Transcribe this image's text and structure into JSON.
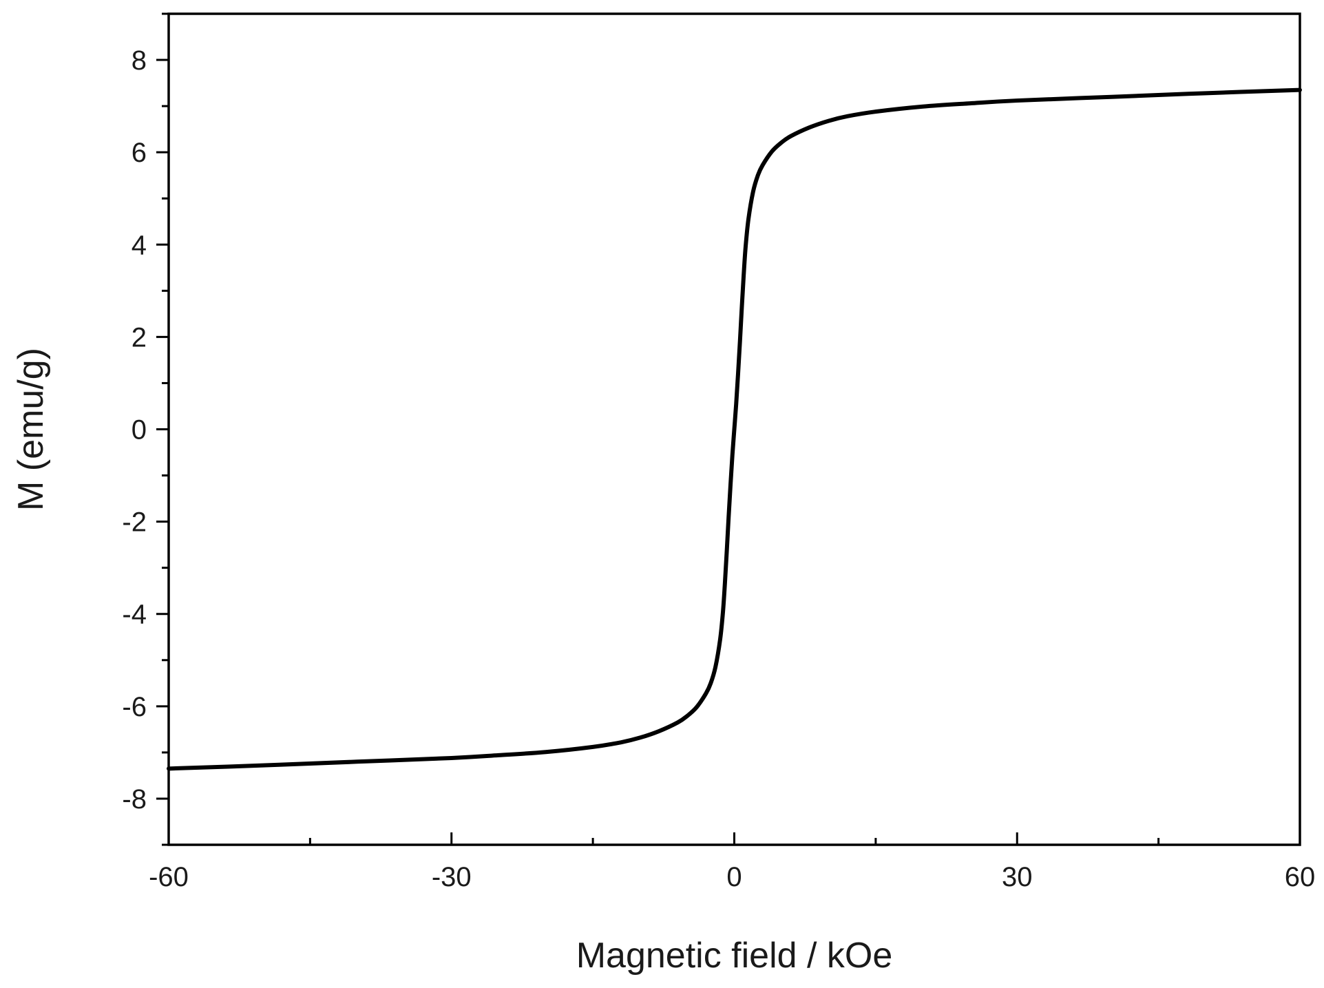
{
  "chart_data": {
    "type": "line",
    "xlabel": "Magnetic field / kOe",
    "ylabel": "M (emu/g)",
    "xlim": [
      -60,
      60
    ],
    "ylim": [
      -9,
      9
    ],
    "x_ticks": [
      -60,
      -30,
      0,
      30,
      60
    ],
    "x_tick_labels": [
      "-60",
      "-30",
      "0",
      "30",
      "60"
    ],
    "y_ticks": [
      -8,
      -6,
      -4,
      -2,
      0,
      2,
      4,
      6,
      8
    ],
    "y_tick_labels": [
      "-8",
      "-6",
      "-4",
      "-2",
      "0",
      "2",
      "4",
      "6",
      "8"
    ],
    "grid": false,
    "legend": "none",
    "line_color": "#000000",
    "series": [
      {
        "x": [
          -60,
          -50,
          -40,
          -30,
          -25,
          -20,
          -15,
          -12,
          -10,
          -8,
          -6,
          -5,
          -4,
          -3,
          -2.5,
          -2,
          -1.5,
          -1.2,
          -1,
          -0.8,
          -0.6,
          -0.4,
          -0.2,
          0,
          0.2,
          0.4,
          0.6,
          0.8,
          1,
          1.2,
          1.5,
          2,
          2.5,
          3,
          4,
          5,
          6,
          8,
          10,
          12,
          15,
          20,
          25,
          30,
          40,
          50,
          60
        ],
        "y": [
          -7.35,
          -7.28,
          -7.2,
          -7.12,
          -7.06,
          -6.99,
          -6.88,
          -6.78,
          -6.68,
          -6.54,
          -6.35,
          -6.21,
          -6.02,
          -5.72,
          -5.5,
          -5.15,
          -4.55,
          -3.95,
          -3.35,
          -2.65,
          -1.9,
          -1.2,
          -0.55,
          0,
          0.55,
          1.2,
          1.9,
          2.65,
          3.35,
          3.95,
          4.55,
          5.15,
          5.5,
          5.72,
          6.02,
          6.21,
          6.35,
          6.54,
          6.68,
          6.78,
          6.88,
          6.99,
          7.06,
          7.12,
          7.2,
          7.28,
          7.35
        ]
      }
    ]
  }
}
